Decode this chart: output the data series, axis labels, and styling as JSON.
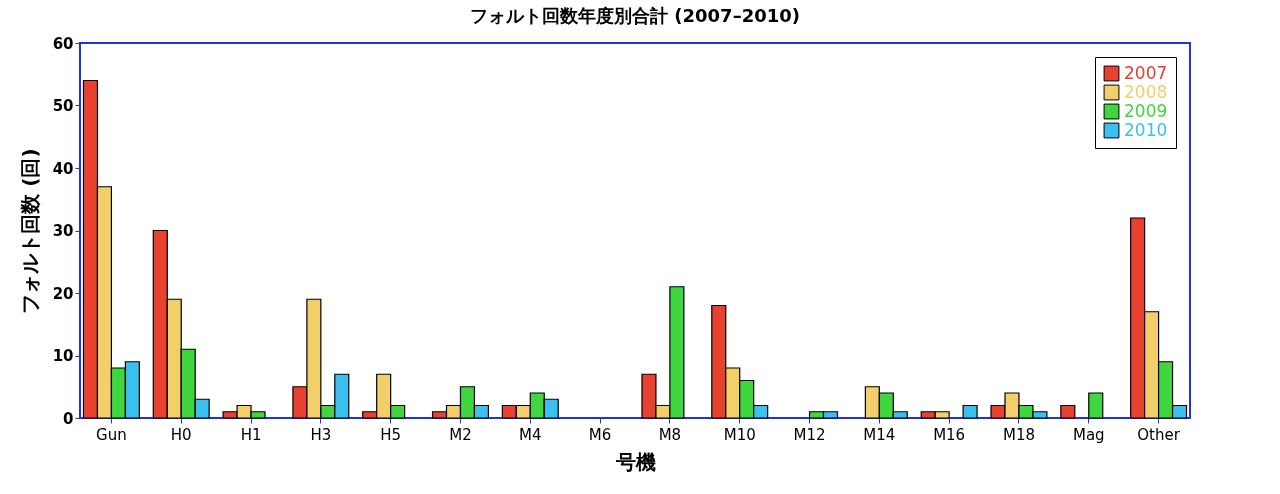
{
  "chart_data": {
    "type": "bar",
    "title": "フォルト回数年度別合計 (2007–2010)",
    "xlabel": "号機",
    "ylabel": "フォルト回数 (回)",
    "categories": [
      "Gun",
      "H0",
      "H1",
      "H3",
      "H5",
      "M2",
      "M4",
      "M6",
      "M8",
      "M10",
      "M12",
      "M14",
      "M16",
      "M18",
      "Mag",
      "Other"
    ],
    "series": [
      {
        "name": "2007",
        "color": "#e8412f",
        "values": [
          54,
          30,
          1,
          5,
          1,
          1,
          2,
          0,
          7,
          18,
          0,
          0,
          1,
          2,
          2,
          32
        ]
      },
      {
        "name": "2008",
        "color": "#f2cf6a",
        "values": [
          37,
          19,
          2,
          19,
          7,
          2,
          2,
          0,
          2,
          8,
          0,
          5,
          1,
          4,
          0,
          17
        ]
      },
      {
        "name": "2009",
        "color": "#3fd63f",
        "values": [
          8,
          11,
          1,
          2,
          2,
          5,
          4,
          0,
          21,
          6,
          1,
          4,
          0,
          2,
          4,
          9
        ]
      },
      {
        "name": "2010",
        "color": "#3cc0f0",
        "values": [
          9,
          3,
          0,
          7,
          0,
          2,
          3,
          0,
          0,
          2,
          1,
          1,
          2,
          1,
          0,
          2
        ]
      }
    ],
    "ylim": [
      0,
      60
    ],
    "yticks": [
      0,
      10,
      20,
      30,
      40,
      50,
      60
    ],
    "legend": "top right",
    "grid": false
  }
}
